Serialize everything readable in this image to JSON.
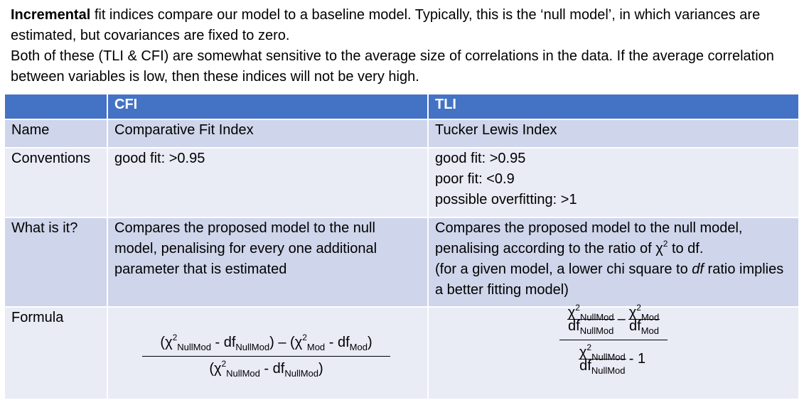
{
  "intro": {
    "p1_bold": "Incremental",
    "p1_rest": " fit indices compare our model to a baseline model. Typically, this is the ‘null model’, in which variances are estimated, but covariances are fixed to zero.",
    "p2": "Both of these (TLI & CFI) are somewhat sensitive to the average size of correlations in the data. If the average correlation between variables is low, then these indices will not be very high."
  },
  "table": {
    "headers": [
      "",
      "CFI",
      "TLI"
    ],
    "name": {
      "label": "Name",
      "cfi": "Comparative Fit Index",
      "tli": "Tucker Lewis Index"
    },
    "conventions": {
      "label": "Conventions",
      "cfi": [
        "good fit: >0.95"
      ],
      "tli": [
        "good fit: >0.95",
        "poor fit: <0.9",
        "possible overfitting: >1"
      ]
    },
    "what": {
      "label": "What is it?",
      "cfi": "Compares the proposed model to the null model, penalising for every one additional parameter that is estimated",
      "tli_1": "Compares the proposed model to the null model, penalising according to the ratio of χ",
      "tli_1_sup": "2",
      "tli_1_end": " to df.",
      "tli_2a": "(for a given model, a lower chi square to ",
      "tli_2b": "df",
      "tli_2c": " ratio implies a better fitting model)"
    },
    "formula": {
      "label": "Formula",
      "chi": "χ",
      "sq": "2",
      "df": "df",
      "null_sub": "NullMod",
      "mod_sub": "Mod",
      "minus": " - ",
      "diff": " – ",
      "lparen": "(",
      "rparen": ")",
      "tli_minus": "–",
      "tli_minus_one": "- 1"
    }
  }
}
